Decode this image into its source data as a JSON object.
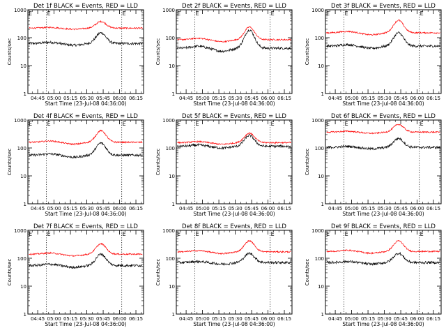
{
  "chart_data": {
    "type": "line",
    "layout": "3x3 grid",
    "panels": [
      {
        "title": "Det 1f BLACK = Events, RED = LLD",
        "red_base": 220,
        "red_peak": 380,
        "black_base": 62,
        "black_peak": 150
      },
      {
        "title": "Det 2f BLACK = Events, RED = LLD",
        "red_base": 85,
        "red_peak": 240,
        "black_base": 42,
        "black_peak": 190
      },
      {
        "title": "Det 3f BLACK = Events, RED = LLD",
        "red_base": 150,
        "red_peak": 420,
        "black_base": 50,
        "black_peak": 150
      },
      {
        "title": "Det 4f BLACK = Events, RED = LLD",
        "red_base": 160,
        "red_peak": 420,
        "black_base": 55,
        "black_peak": 150
      },
      {
        "title": "Det 5f BLACK = Events, RED = LLD",
        "red_base": 155,
        "red_peak": 340,
        "black_base": 115,
        "black_peak": 280
      },
      {
        "title": "Det 6f BLACK = Events, RED = LLD",
        "red_base": 370,
        "red_peak": 700,
        "black_base": 105,
        "black_peak": 220
      },
      {
        "title": "Det 7f BLACK = Events, RED = LLD",
        "red_base": 140,
        "red_peak": 330,
        "black_base": 55,
        "black_peak": 140
      },
      {
        "title": "Det 8f BLACK = Events, RED = LLD",
        "red_base": 170,
        "red_peak": 420,
        "black_base": 70,
        "black_peak": 150
      },
      {
        "title": "Det 9f BLACK = Events, RED = LLD",
        "red_base": 175,
        "red_peak": 420,
        "black_base": 70,
        "black_peak": 150
      }
    ],
    "x_tick_labels": [
      "04:45",
      "05:00",
      "05:15",
      "05:30",
      "05:45",
      "06:00",
      "06:15"
    ],
    "x_ticks_minutes": [
      285,
      300,
      315,
      330,
      345,
      360,
      375
    ],
    "xlim_minutes": [
      276,
      382
    ],
    "xlabel": "Start Time (23-Jul-08 04:36:00)",
    "ylabel": "Counts/sec",
    "y_scale": "log",
    "ylim": [
      1,
      1000
    ],
    "y_tick_labels": [
      "1",
      "10",
      "100",
      "1000"
    ],
    "y_ticks": [
      1,
      10,
      100,
      1000
    ],
    "marker_lines_minutes": [
      293,
      362
    ],
    "marker_label": "E",
    "peak_minute": 343,
    "series": [
      {
        "name": "BLACK = Events",
        "color": "#000000"
      },
      {
        "name": "RED = LLD",
        "color": "#ff0000"
      }
    ]
  }
}
